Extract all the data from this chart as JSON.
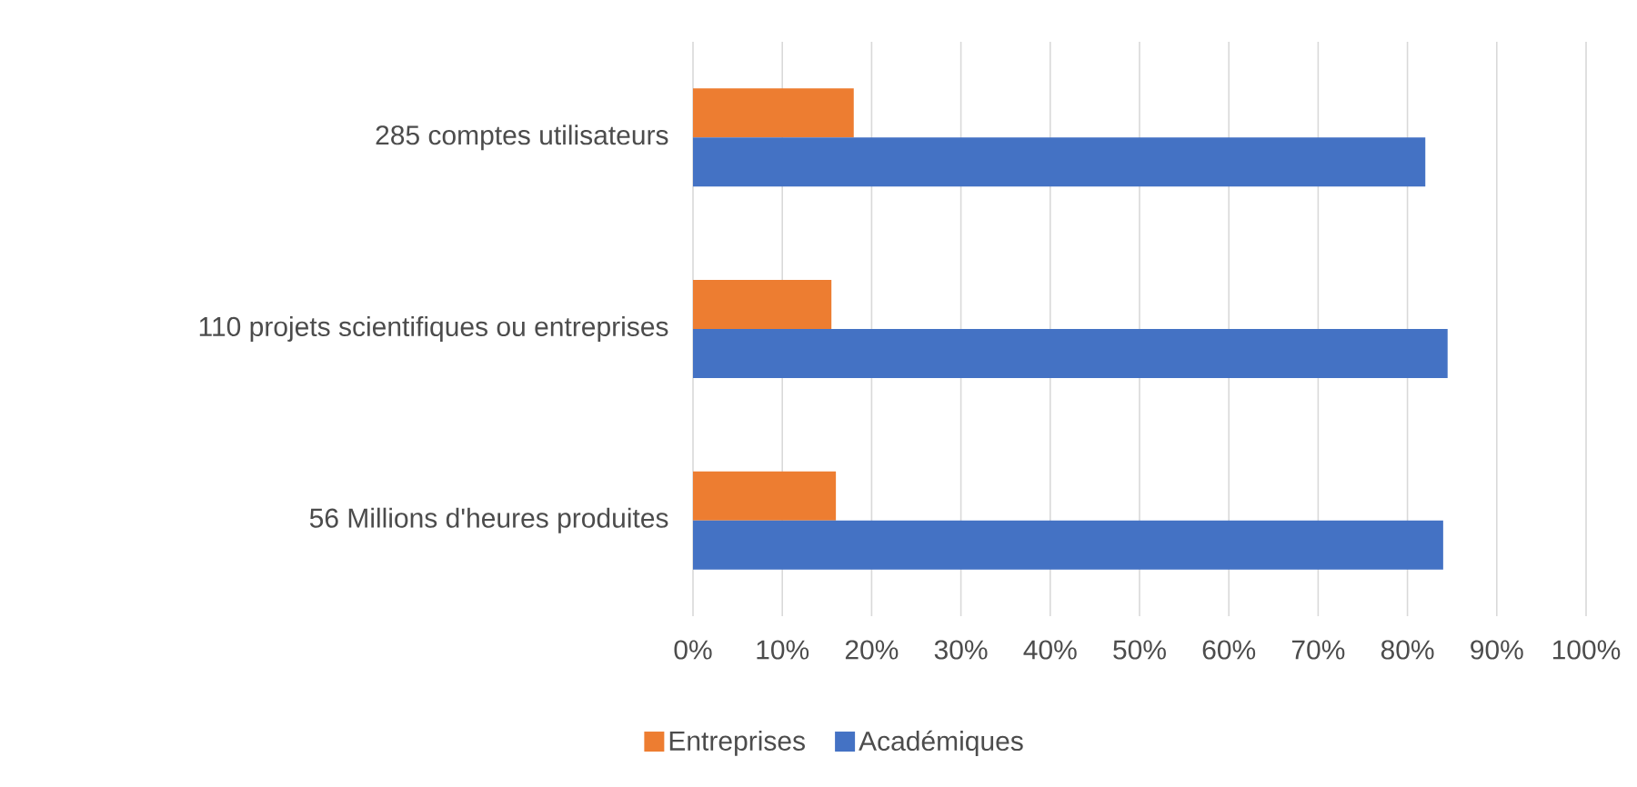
{
  "chart_data": {
    "type": "bar",
    "orientation": "horizontal",
    "categories": [
      "285 comptes utilisateurs",
      "110 projets scientifiques ou entreprises",
      "56 Millions d'heures produites"
    ],
    "series": [
      {
        "name": "Entreprises",
        "color": "#ed7d31",
        "values": [
          18,
          15.5,
          16
        ]
      },
      {
        "name": "Académiques",
        "color": "#4472c4",
        "values": [
          82,
          84.5,
          84
        ]
      }
    ],
    "xlim": [
      0,
      100
    ],
    "xticks": [
      {
        "value": 0,
        "label": "0%"
      },
      {
        "value": 10,
        "label": "10%"
      },
      {
        "value": 20,
        "label": "20%"
      },
      {
        "value": 30,
        "label": "30%"
      },
      {
        "value": 40,
        "label": "40%"
      },
      {
        "value": 50,
        "label": "50%"
      },
      {
        "value": 60,
        "label": "60%"
      },
      {
        "value": 70,
        "label": "70%"
      },
      {
        "value": 80,
        "label": "80%"
      },
      {
        "value": 90,
        "label": "90%"
      },
      {
        "value": 100,
        "label": "100%"
      }
    ],
    "grid": "x",
    "legend": "bottom"
  }
}
